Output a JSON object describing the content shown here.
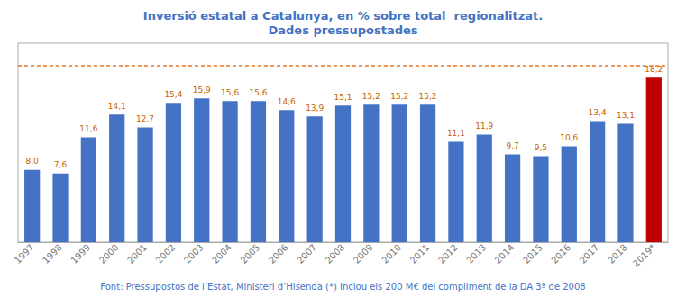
{
  "chart_data": {
    "type": "bar",
    "title": "Inversió estatal a Catalunya, en % sobre total  regionalitzat.\nDades pressupostades",
    "categories": [
      "1997",
      "1998",
      "1999",
      "2000",
      "2001",
      "2002",
      "2003",
      "2004",
      "2005",
      "2006",
      "2007",
      "2008",
      "2009",
      "2010",
      "2011",
      "2012",
      "2013",
      "2014",
      "2015",
      "2016",
      "2017",
      "2018",
      "2019*"
    ],
    "values": [
      8.0,
      7.6,
      11.6,
      14.1,
      12.7,
      15.4,
      15.9,
      15.6,
      15.6,
      14.6,
      13.9,
      15.1,
      15.2,
      15.2,
      15.2,
      11.1,
      11.9,
      9.7,
      9.5,
      10.6,
      13.4,
      13.1,
      18.2
    ],
    "value_labels": [
      "8,0",
      "7,6",
      "11,6",
      "14,1",
      "12,7",
      "15,4",
      "15,9",
      "15,6",
      "15,6",
      "14,6",
      "13,9",
      "15,1",
      "15,2",
      "15,2",
      "15,2",
      "11,1",
      "11,9",
      "9,7",
      "9,5",
      "10,6",
      "13,4",
      "13,1",
      "18,2"
    ],
    "colors": [
      "#4472C4",
      "#4472C4",
      "#4472C4",
      "#4472C4",
      "#4472C4",
      "#4472C4",
      "#4472C4",
      "#4472C4",
      "#4472C4",
      "#4472C4",
      "#4472C4",
      "#4472C4",
      "#4472C4",
      "#4472C4",
      "#4472C4",
      "#4472C4",
      "#4472C4",
      "#4472C4",
      "#4472C4",
      "#4472C4",
      "#4472C4",
      "#4472C4",
      "#C00000"
    ],
    "hline": {
      "y": 19.5,
      "color": "#E87722",
      "line_style": "dashed"
    },
    "ylim": [
      0,
      22
    ],
    "data_labels": true,
    "tick_labels": "x",
    "grid": false,
    "annotation": "Font: Pressupostos de l’Estat, Ministeri d’Hisenda (*) Inclou els 200 M€ del compliment de la DA 3ª de 2008"
  }
}
